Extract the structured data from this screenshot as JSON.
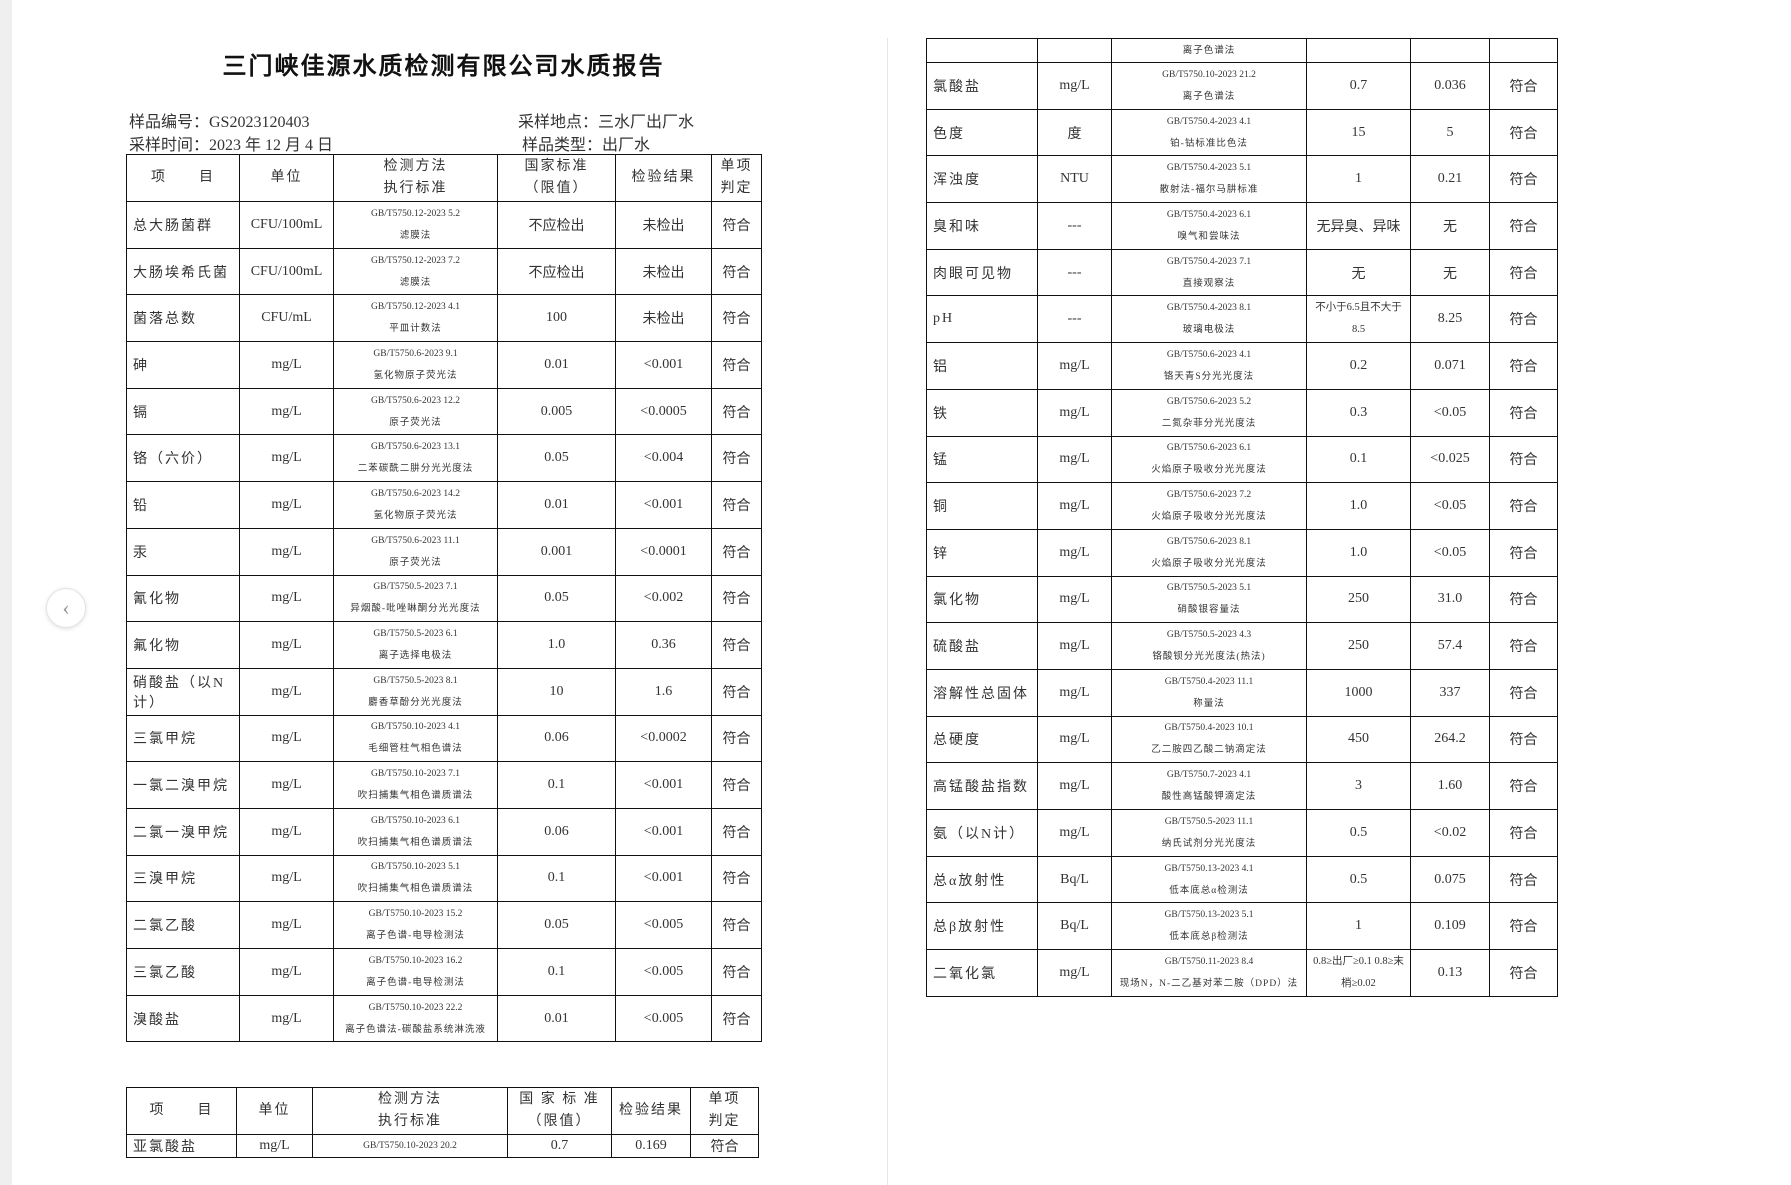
{
  "title": "三门峡佳源水质检测有限公司水质报告",
  "info": {
    "sample_no": "样品编号：GS2023120403",
    "sample_time": "采样时间：2023 年 12 月 4 日",
    "location": "采样地点：三水厂出厂水",
    "type": "样品类型：出厂水"
  },
  "headers": {
    "item": "项　　目",
    "unit": "单位",
    "method1": "检测方法",
    "method2": "执行标准",
    "std1": "国家标准",
    "std2": "（限值）",
    "result": "检验结果",
    "judge1": "单项",
    "judge2": "判定"
  },
  "headers2": {
    "std1": "国 家 标 准"
  },
  "table_left": [
    {
      "item": "总大肠菌群",
      "unit": "CFU/100mL",
      "method": "GB/T5750.12-2023 5.2",
      "method_name": "滤膜法",
      "limit": "不应检出",
      "result": "未检出",
      "judge": "符合"
    },
    {
      "item": "大肠埃希氏菌",
      "unit": "CFU/100mL",
      "method": "GB/T5750.12-2023 7.2",
      "method_name": "滤膜法",
      "limit": "不应检出",
      "result": "未检出",
      "judge": "符合"
    },
    {
      "item": "菌落总数",
      "unit": "CFU/mL",
      "method": "GB/T5750.12-2023 4.1",
      "method_name": "平皿计数法",
      "limit": "100",
      "result": "未检出",
      "judge": "符合"
    },
    {
      "item": "砷",
      "unit": "mg/L",
      "method": "GB/T5750.6-2023 9.1",
      "method_name": "氢化物原子荧光法",
      "limit": "0.01",
      "result": "<0.001",
      "judge": "符合"
    },
    {
      "item": "镉",
      "unit": "mg/L",
      "method": "GB/T5750.6-2023 12.2",
      "method_name": "原子荧光法",
      "limit": "0.005",
      "result": "<0.0005",
      "judge": "符合"
    },
    {
      "item": "铬（六价）",
      "unit": "mg/L",
      "method": "GB/T5750.6-2023 13.1",
      "method_name": "二苯碳酰二肼分光光度法",
      "limit": "0.05",
      "result": "<0.004",
      "judge": "符合"
    },
    {
      "item": "铅",
      "unit": "mg/L",
      "method": "GB/T5750.6-2023 14.2",
      "method_name": "氢化物原子荧光法",
      "limit": "0.01",
      "result": "<0.001",
      "judge": "符合"
    },
    {
      "item": "汞",
      "unit": "mg/L",
      "method": "GB/T5750.6-2023 11.1",
      "method_name": "原子荧光法",
      "limit": "0.001",
      "result": "<0.0001",
      "judge": "符合"
    },
    {
      "item": "氰化物",
      "unit": "mg/L",
      "method": "GB/T5750.5-2023 7.1",
      "method_name": "异烟酸-吡唑啉酮分光光度法",
      "limit": "0.05",
      "result": "<0.002",
      "judge": "符合"
    },
    {
      "item": "氟化物",
      "unit": "mg/L",
      "method": "GB/T5750.5-2023 6.1",
      "method_name": "离子选择电极法",
      "limit": "1.0",
      "result": "0.36",
      "judge": "符合"
    },
    {
      "item": "硝酸盐（以N计）",
      "unit": "mg/L",
      "method": "GB/T5750.5-2023 8.1",
      "method_name": "麝香草酚分光光度法",
      "limit": "10",
      "result": "1.6",
      "judge": "符合"
    },
    {
      "item": "三氯甲烷",
      "unit": "mg/L",
      "method": "GB/T5750.10-2023 4.1",
      "method_name": "毛细管柱气相色谱法",
      "limit": "0.06",
      "result": "<0.0002",
      "judge": "符合"
    },
    {
      "item": "一氯二溴甲烷",
      "unit": "mg/L",
      "method": "GB/T5750.10-2023 7.1",
      "method_name": "吹扫捕集气相色谱质谱法",
      "limit": "0.1",
      "result": "<0.001",
      "judge": "符合"
    },
    {
      "item": "二氯一溴甲烷",
      "unit": "mg/L",
      "method": "GB/T5750.10-2023 6.1",
      "method_name": "吹扫捕集气相色谱质谱法",
      "limit": "0.06",
      "result": "<0.001",
      "judge": "符合"
    },
    {
      "item": "三溴甲烷",
      "unit": "mg/L",
      "method": "GB/T5750.10-2023 5.1",
      "method_name": "吹扫捕集气相色谱质谱法",
      "limit": "0.1",
      "result": "<0.001",
      "judge": "符合"
    },
    {
      "item": "二氯乙酸",
      "unit": "mg/L",
      "method": "GB/T5750.10-2023 15.2",
      "method_name": "离子色谱-电导检测法",
      "limit": "0.05",
      "result": "<0.005",
      "judge": "符合"
    },
    {
      "item": "三氯乙酸",
      "unit": "mg/L",
      "method": "GB/T5750.10-2023 16.2",
      "method_name": "离子色谱-电导检测法",
      "limit": "0.1",
      "result": "<0.005",
      "judge": "符合"
    },
    {
      "item": "溴酸盐",
      "unit": "mg/L",
      "method": "GB/T5750.10-2023 22.2",
      "method_name": "离子色谱法-碳酸盐系统淋洗液",
      "limit": "0.01",
      "result": "<0.005",
      "judge": "符合"
    }
  ],
  "table_bottom": [
    {
      "item": "亚氯酸盐",
      "unit": "mg/L",
      "method": "GB/T5750.10-2023 20.2",
      "limit": "0.7",
      "result": "0.169",
      "judge": "符合"
    }
  ],
  "table_right_cont": {
    "method_name": "离子色谱法"
  },
  "table_right": [
    {
      "item": "氯酸盐",
      "unit": "mg/L",
      "method": "GB/T5750.10-2023 21.2",
      "method_name": "离子色谱法",
      "limit": "0.7",
      "result": "0.036",
      "judge": "符合"
    },
    {
      "item": "色度",
      "unit": "度",
      "method": "GB/T5750.4-2023 4.1",
      "method_name": "铂-钴标准比色法",
      "limit": "15",
      "result": "5",
      "judge": "符合"
    },
    {
      "item": "浑浊度",
      "unit": "NTU",
      "method": "GB/T5750.4-2023 5.1",
      "method_name": "散射法-福尔马肼标准",
      "limit": "1",
      "result": "0.21",
      "judge": "符合"
    },
    {
      "item": "臭和味",
      "unit": "---",
      "method": "GB/T5750.4-2023 6.1",
      "method_name": "嗅气和尝味法",
      "limit": "无异臭、异味",
      "result": "无",
      "judge": "符合"
    },
    {
      "item": "肉眼可见物",
      "unit": "---",
      "method": "GB/T5750.4-2023 7.1",
      "method_name": "直接观察法",
      "limit": "无",
      "result": "无",
      "judge": "符合"
    },
    {
      "item": "pH",
      "unit": "---",
      "method": "GB/T5750.4-2023 8.1",
      "method_name": "玻璃电极法",
      "limit": "不小于6.5且不大于8.5",
      "result": "8.25",
      "judge": "符合"
    },
    {
      "item": "铝",
      "unit": "mg/L",
      "method": "GB/T5750.6-2023 4.1",
      "method_name": "铬天青S分光光度法",
      "limit": "0.2",
      "result": "0.071",
      "judge": "符合"
    },
    {
      "item": "铁",
      "unit": "mg/L",
      "method": "GB/T5750.6-2023 5.2",
      "method_name": "二氮杂菲分光光度法",
      "limit": "0.3",
      "result": "<0.05",
      "judge": "符合"
    },
    {
      "item": "锰",
      "unit": "mg/L",
      "method": "GB/T5750.6-2023 6.1",
      "method_name": "火焰原子吸收分光光度法",
      "limit": "0.1",
      "result": "<0.025",
      "judge": "符合"
    },
    {
      "item": "铜",
      "unit": "mg/L",
      "method": "GB/T5750.6-2023 7.2",
      "method_name": "火焰原子吸收分光光度法",
      "limit": "1.0",
      "result": "<0.05",
      "judge": "符合"
    },
    {
      "item": "锌",
      "unit": "mg/L",
      "method": "GB/T5750.6-2023 8.1",
      "method_name": "火焰原子吸收分光光度法",
      "limit": "1.0",
      "result": "<0.05",
      "judge": "符合"
    },
    {
      "item": "氯化物",
      "unit": "mg/L",
      "method": "GB/T5750.5-2023 5.1",
      "method_name": "硝酸银容量法",
      "limit": "250",
      "result": "31.0",
      "judge": "符合"
    },
    {
      "item": "硫酸盐",
      "unit": "mg/L",
      "method": "GB/T5750.5-2023 4.3",
      "method_name": "铬酸钡分光光度法(热法)",
      "limit": "250",
      "result": "57.4",
      "judge": "符合"
    },
    {
      "item": "溶解性总固体",
      "unit": "mg/L",
      "method": "GB/T5750.4-2023 11.1",
      "method_name": "称量法",
      "limit": "1000",
      "result": "337",
      "judge": "符合"
    },
    {
      "item": "总硬度",
      "unit": "mg/L",
      "method": "GB/T5750.4-2023 10.1",
      "method_name": "乙二胺四乙酸二钠滴定法",
      "limit": "450",
      "result": "264.2",
      "judge": "符合"
    },
    {
      "item": "高锰酸盐指数",
      "unit": "mg/L",
      "method": "GB/T5750.7-2023 4.1",
      "method_name": "酸性高锰酸钾滴定法",
      "limit": "3",
      "result": "1.60",
      "judge": "符合"
    },
    {
      "item": "氨（以N计）",
      "unit": "mg/L",
      "method": "GB/T5750.5-2023 11.1",
      "method_name": "纳氏试剂分光光度法",
      "limit": "0.5",
      "result": "<0.02",
      "judge": "符合"
    },
    {
      "item": "总α放射性",
      "unit": "Bq/L",
      "method": "GB/T5750.13-2023 4.1",
      "method_name": "低本底总α检测法",
      "limit": "0.5",
      "result": "0.075",
      "judge": "符合"
    },
    {
      "item": "总β放射性",
      "unit": "Bq/L",
      "method": "GB/T5750.13-2023 5.1",
      "method_name": "低本底总β检测法",
      "limit": "1",
      "result": "0.109",
      "judge": "符合"
    },
    {
      "item": "二氧化氯",
      "unit": "mg/L",
      "method": "GB/T5750.11-2023 8.4",
      "method_name": "现场N，N-二乙基对苯二胺（DPD）法",
      "limit": "0.8≥出厂≥0.1 0.8≥末梢≥0.02",
      "result": "0.13",
      "judge": "符合"
    }
  ],
  "icons": {
    "back": "chevron-left-icon"
  }
}
